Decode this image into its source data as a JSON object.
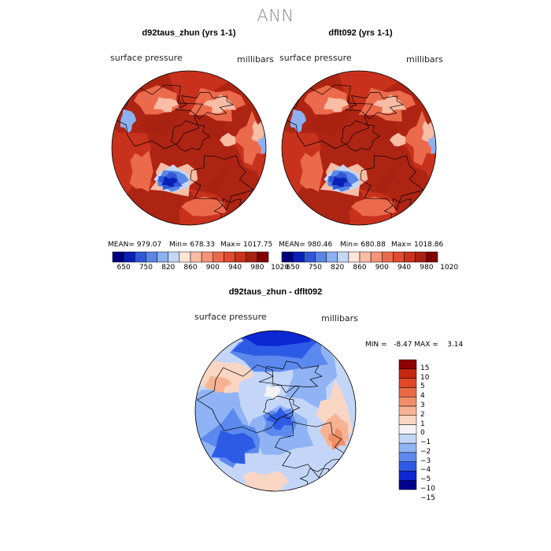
{
  "main_title": "ANN",
  "panels": [
    {
      "title": "d92taus_zhun (yrs 1-1)",
      "field_label": "surface pressure",
      "units_label": "millibars",
      "mean_text": "MEAN= 979.07",
      "min_text": "Min= 678.33",
      "max_text": "Max= 1017.75"
    },
    {
      "title": "dflt092 (yrs 1-1)",
      "field_label": "surface pressure",
      "units_label": "millibars",
      "mean_text": "MEAN= 980.46",
      "min_text": "Min= 680.88",
      "max_text": "Max= 1018.86"
    }
  ],
  "diff_panel": {
    "title": "d92taus_zhun - dflt092",
    "field_label": "surface pressure",
    "units_label": "millibars",
    "minmax_text": "MIN =   -8.47 MAX =    3.14"
  },
  "colors": {
    "abs_scale": [
      "#00007e",
      "#0a1fb5",
      "#2f57d6",
      "#5a86e6",
      "#8cb0f0",
      "#c4d8f6",
      "#fde5d7",
      "#f9bca5",
      "#f39378",
      "#ec6a4c",
      "#e04a2f",
      "#c8321c",
      "#a82012",
      "#800000"
    ],
    "diff_scale": [
      "#000090",
      "#0b28d2",
      "#2d5be6",
      "#5b89ee",
      "#8fb3f4",
      "#c4d6f8",
      "#f3f3f3",
      "#f9d6c4",
      "#f6b394",
      "#f18e68",
      "#ea6a44",
      "#e04826",
      "#c4280f",
      "#8f0000"
    ],
    "coastline": "#000000"
  },
  "chart_data": [
    {
      "type": "heatmap",
      "title": "d92taus_zhun (yrs 1-1)",
      "projection": "north polar stereographic",
      "variable": "surface pressure",
      "units": "millibars",
      "mean": 979.07,
      "min": 678.33,
      "max": 1017.75,
      "colorbar_ticks": [
        650,
        750,
        820,
        860,
        900,
        940,
        980,
        1020
      ],
      "colorbar_bins": 14
    },
    {
      "type": "heatmap",
      "title": "dflt092 (yrs 1-1)",
      "projection": "north polar stereographic",
      "variable": "surface pressure",
      "units": "millibars",
      "mean": 980.46,
      "min": 680.88,
      "max": 1018.86,
      "colorbar_ticks": [
        650,
        750,
        820,
        860,
        900,
        940,
        980,
        1020
      ],
      "colorbar_bins": 14
    },
    {
      "type": "heatmap",
      "title": "d92taus_zhun - dflt092",
      "projection": "north polar stereographic",
      "variable": "surface pressure",
      "units": "millibars",
      "min": -8.47,
      "max": 3.14,
      "colorbar_ticks": [
        -15,
        -10,
        -5,
        -4,
        -3,
        -2,
        -1,
        0,
        1,
        2,
        3,
        4,
        5,
        10,
        15
      ],
      "colorbar_bins": 14
    }
  ],
  "abs_ticks": [
    "650",
    "750",
    "820",
    "860",
    "900",
    "940",
    "980",
    "1020"
  ],
  "diff_ticks": [
    "15",
    "10",
    "5",
    "4",
    "3",
    "2",
    "1",
    "0",
    "−1",
    "−2",
    "−3",
    "−4",
    "−5",
    "−10",
    "−15"
  ]
}
